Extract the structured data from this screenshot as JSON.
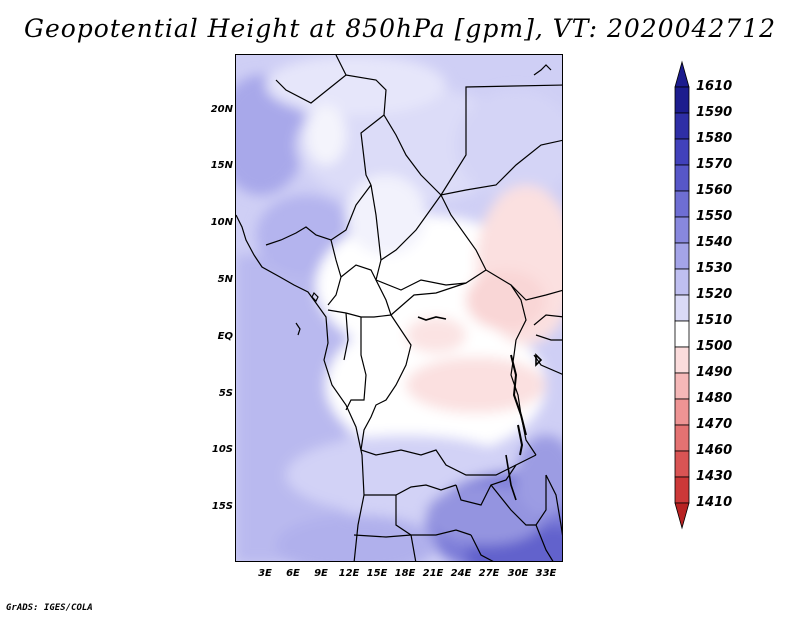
{
  "title": "Geopotential Height at 850hPa [gpm], VT: 2020042712",
  "footer": "GrADS: IGES/COLA",
  "map": {
    "region": "Central & Southern Africa",
    "lat_labels": [
      "20N",
      "15N",
      "10N",
      "5N",
      "EQ",
      "5S",
      "10S",
      "15S"
    ],
    "lon_labels": [
      "3E",
      "6E",
      "9E",
      "12E",
      "15E",
      "18E",
      "21E",
      "24E",
      "27E",
      "30E",
      "33E"
    ]
  },
  "colorbar": {
    "labels": [
      "1610",
      "1590",
      "1580",
      "1570",
      "1560",
      "1550",
      "1540",
      "1530",
      "1520",
      "1510",
      "1500",
      "1490",
      "1480",
      "1470",
      "1460",
      "1430",
      "1410"
    ],
    "colors": [
      "#1c1c8e",
      "#2e2ea6",
      "#4141bb",
      "#5757c8",
      "#6e6ed3",
      "#8888de",
      "#a4a4e8",
      "#bfbff0",
      "#dadaf7",
      "#ffffff",
      "#fbdcdc",
      "#f5b8b8",
      "#ee9494",
      "#e47272",
      "#d95454",
      "#cc3838",
      "#b82222"
    ]
  }
}
